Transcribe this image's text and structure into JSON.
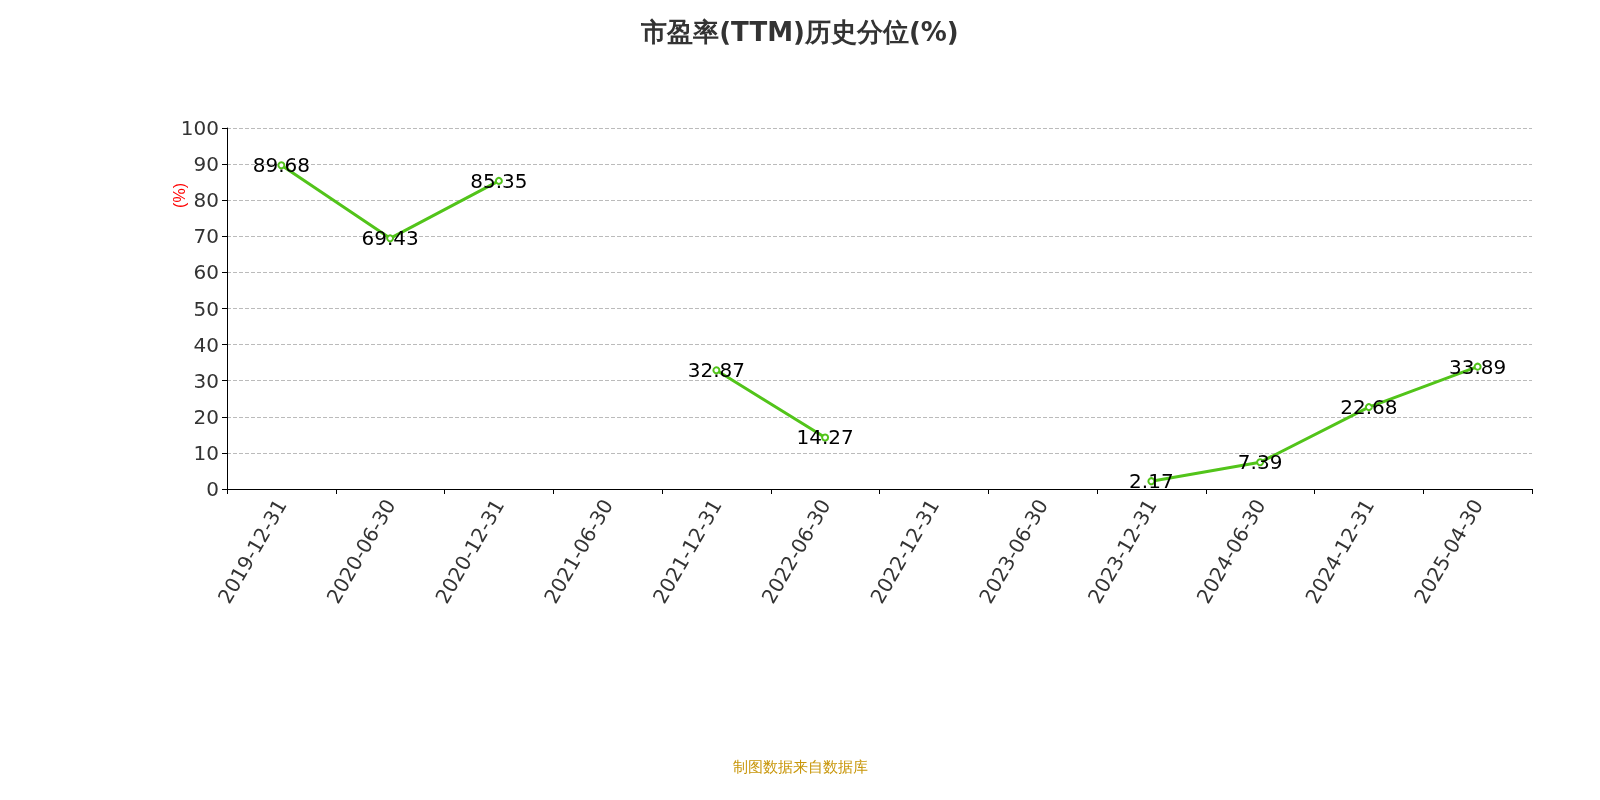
{
  "chart_data": {
    "type": "line",
    "title": "市盈率(TTM)历史分位(%)",
    "ylabel": "(%)",
    "categories": [
      "2019-12-31",
      "2020-06-30",
      "2020-12-31",
      "2021-06-30",
      "2021-12-31",
      "2022-06-30",
      "2022-12-31",
      "2023-06-30",
      "2023-12-31",
      "2024-06-30",
      "2024-12-31",
      "2025-04-30"
    ],
    "series": [
      {
        "color": "#52c41a",
        "values": [
          89.68,
          69.43,
          85.35,
          null,
          32.87,
          14.27,
          null,
          null,
          2.17,
          7.39,
          22.68,
          33.89
        ]
      }
    ],
    "ylim": [
      0,
      100
    ],
    "yticks": [
      0,
      10,
      20,
      30,
      40,
      50,
      60,
      70,
      80,
      90,
      100
    ],
    "grid": "y",
    "marker": "circle",
    "line_style": "solid",
    "data_labels": true,
    "annotations": [
      "制图数据来自数据库"
    ]
  }
}
